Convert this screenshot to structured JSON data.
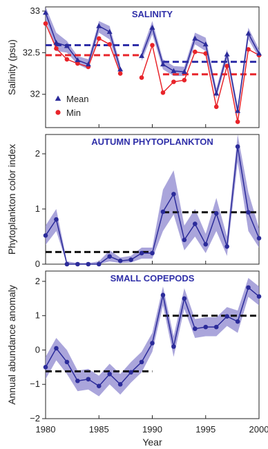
{
  "chart_data": [
    {
      "type": "line",
      "title": "SALINITY",
      "ylabel": "Salinity (psu)",
      "ylim": [
        31.6,
        33.05
      ],
      "yticks": [
        {
          "v": 32,
          "label": "32"
        },
        {
          "v": 32.5,
          "label": "32.5"
        },
        {
          "v": 33,
          "label": "33"
        }
      ],
      "legend": "lower-left",
      "series": [
        {
          "name": "Mean",
          "marker": "triangle",
          "segments": [
            {
              "x": [
                1980,
                1981,
                1982,
                1983,
                1984,
                1985,
                1986,
                1987
              ],
              "y": [
                32.98,
                32.62,
                32.58,
                32.41,
                32.36,
                32.82,
                32.75,
                32.3
              ]
            },
            {
              "x": [
                1989,
                1990,
                1991,
                1992,
                1993,
                1994,
                1995,
                1996,
                1997,
                1998,
                1999,
                2000
              ],
              "y": [
                32.46,
                32.8,
                32.36,
                32.28,
                32.27,
                32.67,
                32.6,
                32.01,
                32.48,
                31.8,
                32.73,
                32.49
              ]
            }
          ],
          "band": [
            {
              "x": [
                1980,
                1981,
                1982,
                1983,
                1984,
                1985,
                1986,
                1987
              ],
              "lo": [
                32.9,
                32.52,
                32.5,
                32.36,
                32.3,
                32.74,
                32.66,
                32.24
              ],
              "hi": [
                33.05,
                32.74,
                32.64,
                32.46,
                32.42,
                32.88,
                32.82,
                32.36
              ]
            },
            {
              "x": [
                1989,
                1990,
                1991,
                1992,
                1993,
                1994,
                1995,
                1996,
                1997,
                1998,
                1999,
                2000
              ],
              "lo": [
                32.4,
                32.72,
                32.3,
                32.22,
                32.22,
                32.6,
                32.52,
                31.95,
                32.42,
                31.74,
                32.66,
                32.44
              ],
              "hi": [
                32.52,
                32.88,
                32.42,
                32.34,
                32.33,
                32.74,
                32.68,
                32.07,
                32.54,
                31.86,
                32.8,
                32.54
              ]
            }
          ],
          "mean_lines": [
            {
              "x": [
                1980,
                1989
              ],
              "y": 32.59
            },
            {
              "x": [
                1991,
                2000
              ],
              "y": 32.39
            }
          ]
        },
        {
          "name": "Min",
          "marker": "circle",
          "segments": [
            {
              "x": [
                1980,
                1981,
                1982,
                1983,
                1984,
                1985,
                1986,
                1987
              ],
              "y": [
                32.85,
                32.55,
                32.42,
                32.37,
                32.33,
                32.67,
                32.6,
                32.25
              ]
            },
            {
              "x": [
                1989,
                1990,
                1991,
                1992,
                1993,
                1994,
                1995,
                1996,
                1997,
                1998,
                1999,
                2000
              ],
              "y": [
                32.2,
                32.59,
                32.02,
                32.15,
                32.17,
                32.51,
                32.49,
                31.85,
                32.34,
                31.67,
                32.54,
                32.47
              ]
            }
          ],
          "mean_lines": [
            {
              "x": [
                1980,
                1989
              ],
              "y": 32.47
            },
            {
              "x": [
                1991,
                2000
              ],
              "y": 32.24
            }
          ]
        }
      ]
    },
    {
      "type": "line",
      "title": "AUTUMN PHYTOPLANKTON",
      "ylabel": "Phytoplankton color index",
      "ylim": [
        0,
        2.35
      ],
      "yticks": [
        {
          "v": 0,
          "label": "0"
        },
        {
          "v": 1,
          "label": "1"
        },
        {
          "v": 2,
          "label": "2"
        }
      ],
      "series": [
        {
          "name": "",
          "segments": [
            {
              "x": [
                1980,
                1981,
                1982,
                1983,
                1984,
                1985,
                1986,
                1987,
                1988,
                1989,
                1990,
                1991,
                1992,
                1993,
                1994,
                1995,
                1996,
                1997,
                1998,
                1999,
                2000
              ],
              "y": [
                0.52,
                0.81,
                0,
                0,
                0,
                0,
                0.14,
                0.06,
                0.08,
                0.2,
                0.2,
                0.95,
                1.27,
                0.44,
                0.73,
                0.36,
                0.92,
                0.32,
                2.13,
                0.94,
                0.47
              ]
            }
          ],
          "band": [
            {
              "x": [
                1980,
                1981,
                1982,
                1983,
                1984,
                1985,
                1986,
                1987,
                1988,
                1989,
                1990,
                1991,
                1992,
                1993,
                1994,
                1995,
                1996,
                1997,
                1998,
                1999,
                2000
              ],
              "lo": [
                0.35,
                0.6,
                0,
                0,
                0,
                0,
                0.05,
                0.02,
                0.03,
                0.1,
                0.1,
                0.6,
                0.9,
                0.25,
                0.5,
                0.2,
                0.6,
                0.15,
                1.85,
                0.6,
                0.3
              ],
              "hi": [
                0.7,
                1.0,
                0.05,
                0.02,
                0.02,
                0.05,
                0.25,
                0.12,
                0.15,
                0.3,
                0.3,
                1.35,
                1.7,
                0.7,
                1.0,
                0.55,
                1.2,
                0.5,
                2.35,
                1.3,
                0.65
              ]
            }
          ],
          "mean_lines": [
            {
              "x": [
                1980,
                1990
              ],
              "y": 0.22
            },
            {
              "x": [
                1991,
                2000
              ],
              "y": 0.94
            }
          ]
        }
      ]
    },
    {
      "type": "line",
      "title": "SMALL COPEPODS",
      "ylabel": "Annual abundance anomaly",
      "xlabel": "Year",
      "ylim": [
        -2,
        2.3
      ],
      "yticks": [
        {
          "v": -2,
          "label": "−2"
        },
        {
          "v": -1,
          "label": "−1"
        },
        {
          "v": 0,
          "label": "0"
        },
        {
          "v": 1,
          "label": "1"
        },
        {
          "v": 2,
          "label": "2"
        }
      ],
      "xticks": [
        {
          "v": 1980,
          "label": "1980"
        },
        {
          "v": 1985,
          "label": "1985"
        },
        {
          "v": 1990,
          "label": "1990"
        },
        {
          "v": 1995,
          "label": "1995"
        },
        {
          "v": 2000,
          "label": "2000"
        }
      ],
      "series": [
        {
          "name": "",
          "segments": [
            {
              "x": [
                1980,
                1981,
                1982,
                1983,
                1984,
                1985,
                1986,
                1987,
                1988,
                1989,
                1990,
                1991,
                1992,
                1993,
                1994,
                1995,
                1996,
                1997,
                1998,
                1999,
                2000
              ],
              "y": [
                -0.5,
                0.05,
                -0.35,
                -0.9,
                -0.85,
                -1.05,
                -0.7,
                -1.0,
                -0.65,
                -0.35,
                0.2,
                1.6,
                0.1,
                1.5,
                0.62,
                0.67,
                0.67,
                0.98,
                0.83,
                1.82,
                1.56
              ]
            }
          ],
          "band": [
            {
              "x": [
                1980,
                1981,
                1982,
                1983,
                1984,
                1985,
                1986,
                1987,
                1988,
                1989,
                1990,
                1991,
                1992,
                1993,
                1994,
                1995,
                1996,
                1997,
                1998,
                1999,
                2000
              ],
              "lo": [
                -0.85,
                -0.3,
                -0.7,
                -1.2,
                -1.15,
                -1.35,
                -1.0,
                -1.3,
                -0.95,
                -0.65,
                -0.05,
                1.3,
                -0.2,
                1.2,
                0.35,
                0.4,
                0.4,
                0.7,
                0.5,
                1.55,
                1.3
              ],
              "hi": [
                -0.2,
                0.35,
                0.0,
                -0.6,
                -0.55,
                -0.75,
                -0.4,
                -0.7,
                -0.35,
                -0.05,
                0.5,
                1.85,
                0.4,
                1.8,
                0.9,
                0.95,
                0.95,
                1.25,
                1.15,
                2.1,
                1.85
              ]
            }
          ],
          "mean_lines": [
            {
              "x": [
                1980,
                1990
              ],
              "y": -0.62
            },
            {
              "x": [
                1991,
                2000
              ],
              "y": 1.0
            }
          ]
        }
      ]
    }
  ],
  "colors": {
    "mean_line": "#2b2b9a",
    "band": "#8e87cf",
    "min_line": "#e8242a",
    "title": "#2f2fa8",
    "mean_dash_blue": "#2f2fa8",
    "mean_dash_red": "#e8242a",
    "mean_dash_black": "#111111",
    "axis": "#222222"
  }
}
